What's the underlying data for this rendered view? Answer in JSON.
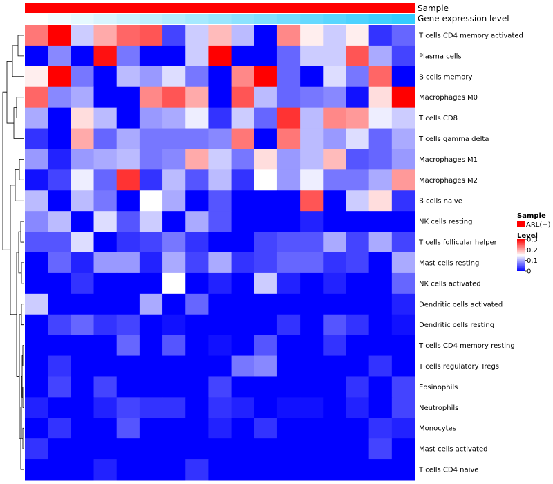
{
  "chart_data": {
    "type": "heatmap",
    "title": "",
    "column_annotations": [
      {
        "name": "Sample",
        "label": "Sample",
        "value": "ARL(+)",
        "color": "#ff0000"
      },
      {
        "name": "Gene expression level",
        "label": "Gene expression level",
        "from": "#ffffff",
        "to": "#33ccff"
      }
    ],
    "n_columns": 17,
    "rows": [
      {
        "label": "T cells CD4 memory activated",
        "values": [
          0.23,
          0.3,
          0.12,
          0.2,
          0.24,
          0.25,
          0.04,
          0.12,
          0.19,
          0.11,
          0.0,
          0.22,
          0.16,
          0.12,
          0.16,
          0.03,
          0.06
        ]
      },
      {
        "label": "Plasma cells",
        "values": [
          0.0,
          0.08,
          0.0,
          0.29,
          0.07,
          0.0,
          0.0,
          0.12,
          0.3,
          0.0,
          0.0,
          0.06,
          0.12,
          0.12,
          0.25,
          0.1,
          0.04
        ]
      },
      {
        "label": "B cells memory",
        "values": [
          0.16,
          0.3,
          0.07,
          0.0,
          0.11,
          0.09,
          0.13,
          0.07,
          0.0,
          0.22,
          0.3,
          0.06,
          0.0,
          0.13,
          0.07,
          0.24,
          0.0
        ]
      },
      {
        "label": "Macrophages M0",
        "values": [
          0.24,
          0.08,
          0.1,
          0.0,
          0.0,
          0.22,
          0.25,
          0.2,
          0.0,
          0.25,
          0.11,
          0.06,
          0.07,
          0.08,
          0.01,
          0.17,
          0.3
        ]
      },
      {
        "label": "T cells CD8",
        "values": [
          0.1,
          0.0,
          0.17,
          0.11,
          0.0,
          0.09,
          0.1,
          0.14,
          0.03,
          0.12,
          0.06,
          0.27,
          0.11,
          0.22,
          0.21,
          0.14,
          0.12
        ]
      },
      {
        "label": "T cells gamma delta",
        "values": [
          0.03,
          0.0,
          0.2,
          0.06,
          0.1,
          0.07,
          0.07,
          0.07,
          0.08,
          0.23,
          0.0,
          0.23,
          0.11,
          0.09,
          0.13,
          0.06,
          0.1
        ]
      },
      {
        "label": "Macrophages M1",
        "values": [
          0.09,
          0.02,
          0.09,
          0.1,
          0.11,
          0.07,
          0.08,
          0.2,
          0.12,
          0.07,
          0.17,
          0.09,
          0.11,
          0.19,
          0.05,
          0.06,
          0.09
        ]
      },
      {
        "label": "Macrophages M2",
        "values": [
          0.01,
          0.04,
          0.14,
          0.06,
          0.27,
          0.03,
          0.11,
          0.05,
          0.11,
          0.03,
          0.15,
          0.09,
          0.14,
          0.07,
          0.07,
          0.1,
          0.21
        ]
      },
      {
        "label": "B cells naive",
        "values": [
          0.11,
          0.0,
          0.11,
          0.07,
          0.0,
          0.15,
          0.1,
          0.0,
          0.05,
          0.0,
          0.0,
          0.0,
          0.25,
          0.0,
          0.12,
          0.17,
          0.03
        ]
      },
      {
        "label": "NK cells resting",
        "values": [
          0.08,
          0.11,
          0.0,
          0.13,
          0.05,
          0.12,
          0.0,
          0.1,
          0.05,
          0.0,
          0.0,
          0.0,
          0.02,
          0.0,
          0.0,
          0.0,
          0.0
        ]
      },
      {
        "label": "T cells follicular helper",
        "values": [
          0.05,
          0.05,
          0.13,
          0.0,
          0.03,
          0.04,
          0.07,
          0.03,
          0.0,
          0.0,
          0.04,
          0.05,
          0.05,
          0.1,
          0.04,
          0.1,
          0.04
        ]
      },
      {
        "label": "Mast cells resting",
        "values": [
          0.0,
          0.06,
          0.02,
          0.09,
          0.09,
          0.02,
          0.1,
          0.04,
          0.1,
          0.03,
          0.04,
          0.06,
          0.06,
          0.03,
          0.04,
          0.0,
          0.1
        ]
      },
      {
        "label": "NK cells activated",
        "values": [
          0.0,
          0.0,
          0.03,
          0.0,
          0.0,
          0.0,
          0.15,
          0.0,
          0.02,
          0.0,
          0.12,
          0.02,
          0.0,
          0.02,
          0.0,
          0.0,
          0.06
        ]
      },
      {
        "label": "Dendritic cells activated",
        "values": [
          0.12,
          0.0,
          0.0,
          0.0,
          0.0,
          0.1,
          0.0,
          0.06,
          0.0,
          0.0,
          0.0,
          0.0,
          0.0,
          0.0,
          0.0,
          0.0,
          0.02
        ]
      },
      {
        "label": "Dendritic cells resting",
        "values": [
          0.0,
          0.04,
          0.06,
          0.03,
          0.04,
          0.0,
          0.01,
          0.0,
          0.0,
          0.0,
          0.0,
          0.03,
          0.0,
          0.05,
          0.03,
          0.0,
          0.01
        ]
      },
      {
        "label": "T cells CD4 memory resting",
        "values": [
          0.0,
          0.0,
          0.0,
          0.0,
          0.06,
          0.0,
          0.05,
          0.0,
          0.01,
          0.0,
          0.05,
          0.0,
          0.0,
          0.03,
          0.0,
          0.0,
          0.0
        ]
      },
      {
        "label": "T cells regulatory  Tregs",
        "values": [
          0.0,
          0.03,
          0.0,
          0.0,
          0.0,
          0.0,
          0.0,
          0.0,
          0.0,
          0.07,
          0.08,
          0.0,
          0.0,
          0.0,
          0.0,
          0.03,
          0.0
        ]
      },
      {
        "label": "Eosinophils",
        "values": [
          0.0,
          0.04,
          0.0,
          0.04,
          0.0,
          0.0,
          0.0,
          0.0,
          0.04,
          0.0,
          0.0,
          0.0,
          0.0,
          0.0,
          0.03,
          0.0,
          0.04
        ]
      },
      {
        "label": "Neutrophils",
        "values": [
          0.02,
          0.0,
          0.0,
          0.02,
          0.04,
          0.03,
          0.03,
          0.0,
          0.03,
          0.02,
          0.0,
          0.01,
          0.01,
          0.0,
          0.02,
          0.0,
          0.04
        ]
      },
      {
        "label": "Monocytes",
        "values": [
          0.0,
          0.03,
          0.0,
          0.0,
          0.05,
          0.0,
          0.0,
          0.0,
          0.02,
          0.0,
          0.03,
          0.0,
          0.0,
          0.0,
          0.0,
          0.03,
          0.02
        ]
      },
      {
        "label": "Mast cells activated",
        "values": [
          0.03,
          0.0,
          0.0,
          0.0,
          0.0,
          0.0,
          0.0,
          0.0,
          0.0,
          0.0,
          0.0,
          0.0,
          0.0,
          0.0,
          0.0,
          0.04,
          0.0
        ]
      },
      {
        "label": "T cells CD4 naive",
        "values": [
          0.0,
          0.0,
          0.0,
          0.02,
          0.0,
          0.0,
          0.0,
          0.03,
          0.0,
          0.0,
          0.0,
          0.0,
          0.0,
          0.0,
          0.0,
          0.0,
          0.0
        ]
      }
    ],
    "colorscale": {
      "min": 0,
      "max": 0.3,
      "low": "#0000ff",
      "mid": "#ffffff",
      "high": "#ff0000",
      "mid_value": 0.15
    },
    "legend": {
      "sample_title": "Sample",
      "sample_entry": "ARL(+)",
      "level_title": "Level",
      "ticks": [
        {
          "value": 0.3,
          "label": "0.3"
        },
        {
          "value": 0.2,
          "label": "0.2"
        },
        {
          "value": 0.1,
          "label": "0.1"
        },
        {
          "value": 0,
          "label": "0"
        }
      ],
      "placement": "right"
    },
    "row_dendrogram": true
  }
}
